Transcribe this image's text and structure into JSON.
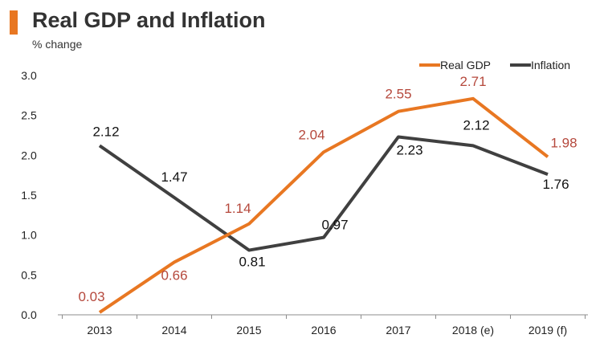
{
  "header": {
    "title": "Real GDP and Inflation",
    "subtitle": "% change"
  },
  "colors": {
    "accent": "#e87722",
    "gdp": "#e87722",
    "gdp_label": "#b5483c",
    "inflation": "#404040",
    "axis": "#8c8c8c",
    "text": "#222222"
  },
  "chart_data": {
    "type": "line",
    "title": "Real GDP and Inflation",
    "ylabel": "% change",
    "xlabel": "",
    "categories": [
      "2013",
      "2014",
      "2015",
      "2016",
      "2017",
      "2018 (e)",
      "2019 (f)"
    ],
    "ylim": [
      0,
      3.0
    ],
    "yticks": [
      "0.0",
      "0.5",
      "1.0",
      "1.5",
      "2.0",
      "2.5",
      "3.0"
    ],
    "legend_position": "top-right",
    "grid": false,
    "series": [
      {
        "name": "Real GDP",
        "color": "#e87722",
        "values": [
          0.03,
          0.66,
          1.14,
          2.04,
          2.55,
          2.71,
          1.98
        ],
        "labels": [
          "0.03",
          "0.66",
          "1.14",
          "2.04",
          "2.55",
          "2.71",
          "1.98"
        ]
      },
      {
        "name": "Inflation",
        "color": "#404040",
        "values": [
          2.12,
          1.47,
          0.81,
          0.97,
          2.23,
          2.12,
          1.76
        ],
        "labels": [
          "2.12",
          "1.47",
          "0.81",
          "0.97",
          "2.23",
          "2.12",
          "1.76"
        ]
      }
    ]
  }
}
